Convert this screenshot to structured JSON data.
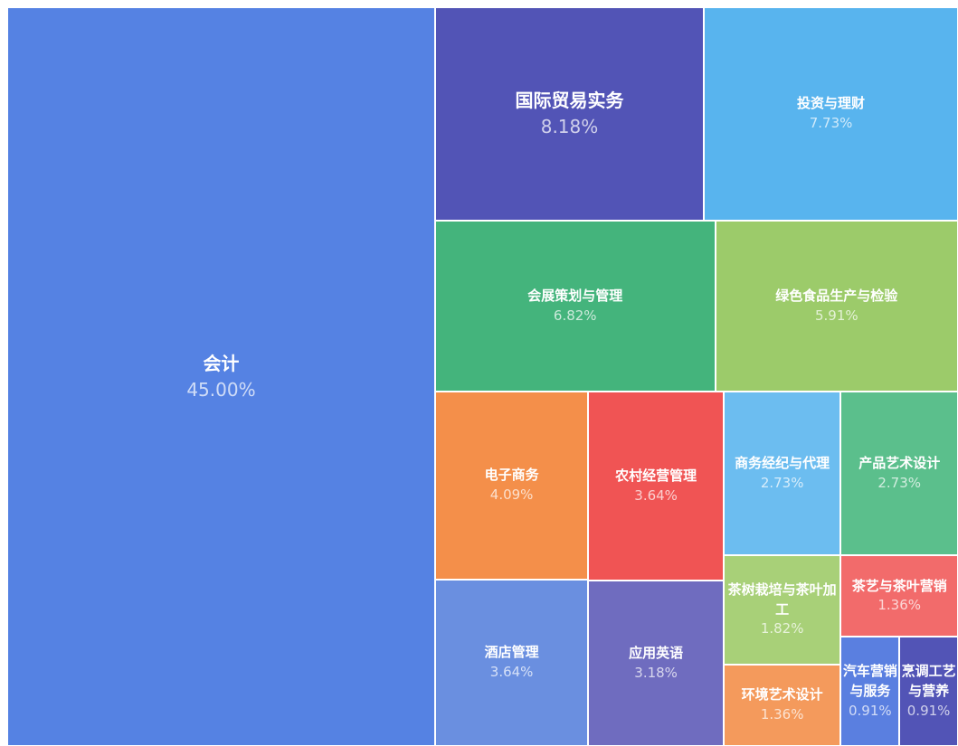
{
  "chart_data": {
    "type": "treemap",
    "categories": [
      "会计",
      "国际贸易实务",
      "投资与理财",
      "会展策划与管理",
      "绿色食品生产与检验",
      "电子商务",
      "酒店管理",
      "农村经营管理",
      "应用英语",
      "商务经纪与代理",
      "产品艺术设计",
      "茶树栽培与茶叶加工",
      "环境艺术设计",
      "茶艺与茶叶营销",
      "汽车营销与服务",
      "烹调工艺与营养"
    ],
    "values": [
      45,
      8.18,
      7.73,
      6.82,
      5.91,
      4.09,
      3.64,
      3.64,
      3.18,
      2.73,
      2.73,
      1.82,
      1.36,
      1.36,
      0.91,
      0.91
    ],
    "value_labels": [
      "45.00%",
      "8.18%",
      "7.73%",
      "6.82%",
      "5.91%",
      "4.09%",
      "3.64%",
      "3.64%",
      "3.18%",
      "2.73%",
      "2.73%",
      "1.82%",
      "1.36%",
      "1.36%",
      "0.91%",
      "0.91%"
    ],
    "colors": [
      "#5582e3",
      "#5254b6",
      "#58b4ee",
      "#44b47c",
      "#9ccb6a",
      "#f48f4a",
      "#6a8fe0",
      "#f05454",
      "#6f6cbf",
      "#6cbdf0",
      "#5bbf8c",
      "#a8d078",
      "#f49a5c",
      "#f26b6b",
      "#5a7fe0",
      "#5254b6"
    ]
  }
}
